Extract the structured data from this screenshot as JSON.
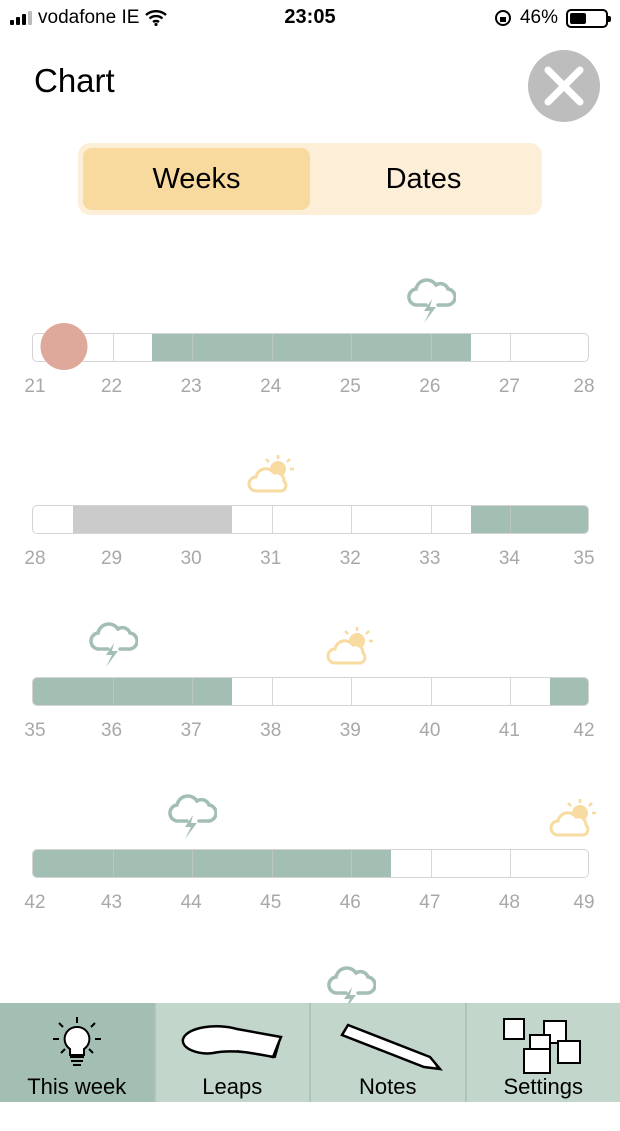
{
  "status": {
    "carrier": "vodafone IE",
    "time": "23:05",
    "battery": "46%",
    "battery_level": 0.46
  },
  "header": {
    "title": "Chart",
    "close_icon": "close-icon"
  },
  "segmented": {
    "options": [
      "Weeks",
      "Dates"
    ],
    "selected": "Weeks"
  },
  "colors": {
    "active": "#a3bfb3",
    "inactive": "#cbcbcb",
    "current": "#dea89b",
    "storm": "#a3bfb3",
    "sun": "#f7dba0"
  },
  "current_week": 21.4,
  "rows": [
    {
      "ticks": [
        "21",
        "22",
        "23",
        "24",
        "25",
        "26",
        "27",
        "28"
      ],
      "start": 21,
      "ranges": [
        {
          "from": 22.5,
          "to": 26.5,
          "kind": "active"
        }
      ],
      "icons": [
        {
          "week": 26,
          "type": "storm"
        }
      ]
    },
    {
      "ticks": [
        "28",
        "29",
        "30",
        "31",
        "32",
        "33",
        "34",
        "35"
      ],
      "start": 28,
      "ranges": [
        {
          "from": 28.5,
          "to": 30.5,
          "kind": "inactive"
        },
        {
          "from": 33.5,
          "to": 35,
          "kind": "active"
        }
      ],
      "icons": [
        {
          "week": 31,
          "type": "sun"
        }
      ]
    },
    {
      "ticks": [
        "35",
        "36",
        "37",
        "38",
        "39",
        "40",
        "41",
        "42"
      ],
      "start": 35,
      "ranges": [
        {
          "from": 35,
          "to": 37.5,
          "kind": "active"
        },
        {
          "from": 41.5,
          "to": 42,
          "kind": "active"
        }
      ],
      "icons": [
        {
          "week": 36,
          "type": "storm"
        },
        {
          "week": 39,
          "type": "sun"
        }
      ]
    },
    {
      "ticks": [
        "42",
        "43",
        "44",
        "45",
        "46",
        "47",
        "48",
        "49"
      ],
      "start": 42,
      "ranges": [
        {
          "from": 42,
          "to": 46.5,
          "kind": "active"
        }
      ],
      "icons": [
        {
          "week": 44,
          "type": "storm"
        },
        {
          "week": 48.8,
          "type": "sun"
        }
      ]
    },
    {
      "ticks": [],
      "start": 49,
      "ranges": [],
      "icons": [
        {
          "week": 53,
          "type": "storm"
        }
      ]
    }
  ],
  "nav": [
    {
      "label": "This week",
      "icon": "lightbulb-icon",
      "active": true
    },
    {
      "label": "Leaps",
      "icon": "book-icon"
    },
    {
      "label": "Notes",
      "icon": "pencil-icon"
    },
    {
      "label": "Settings",
      "icon": "blocks-icon"
    }
  ]
}
